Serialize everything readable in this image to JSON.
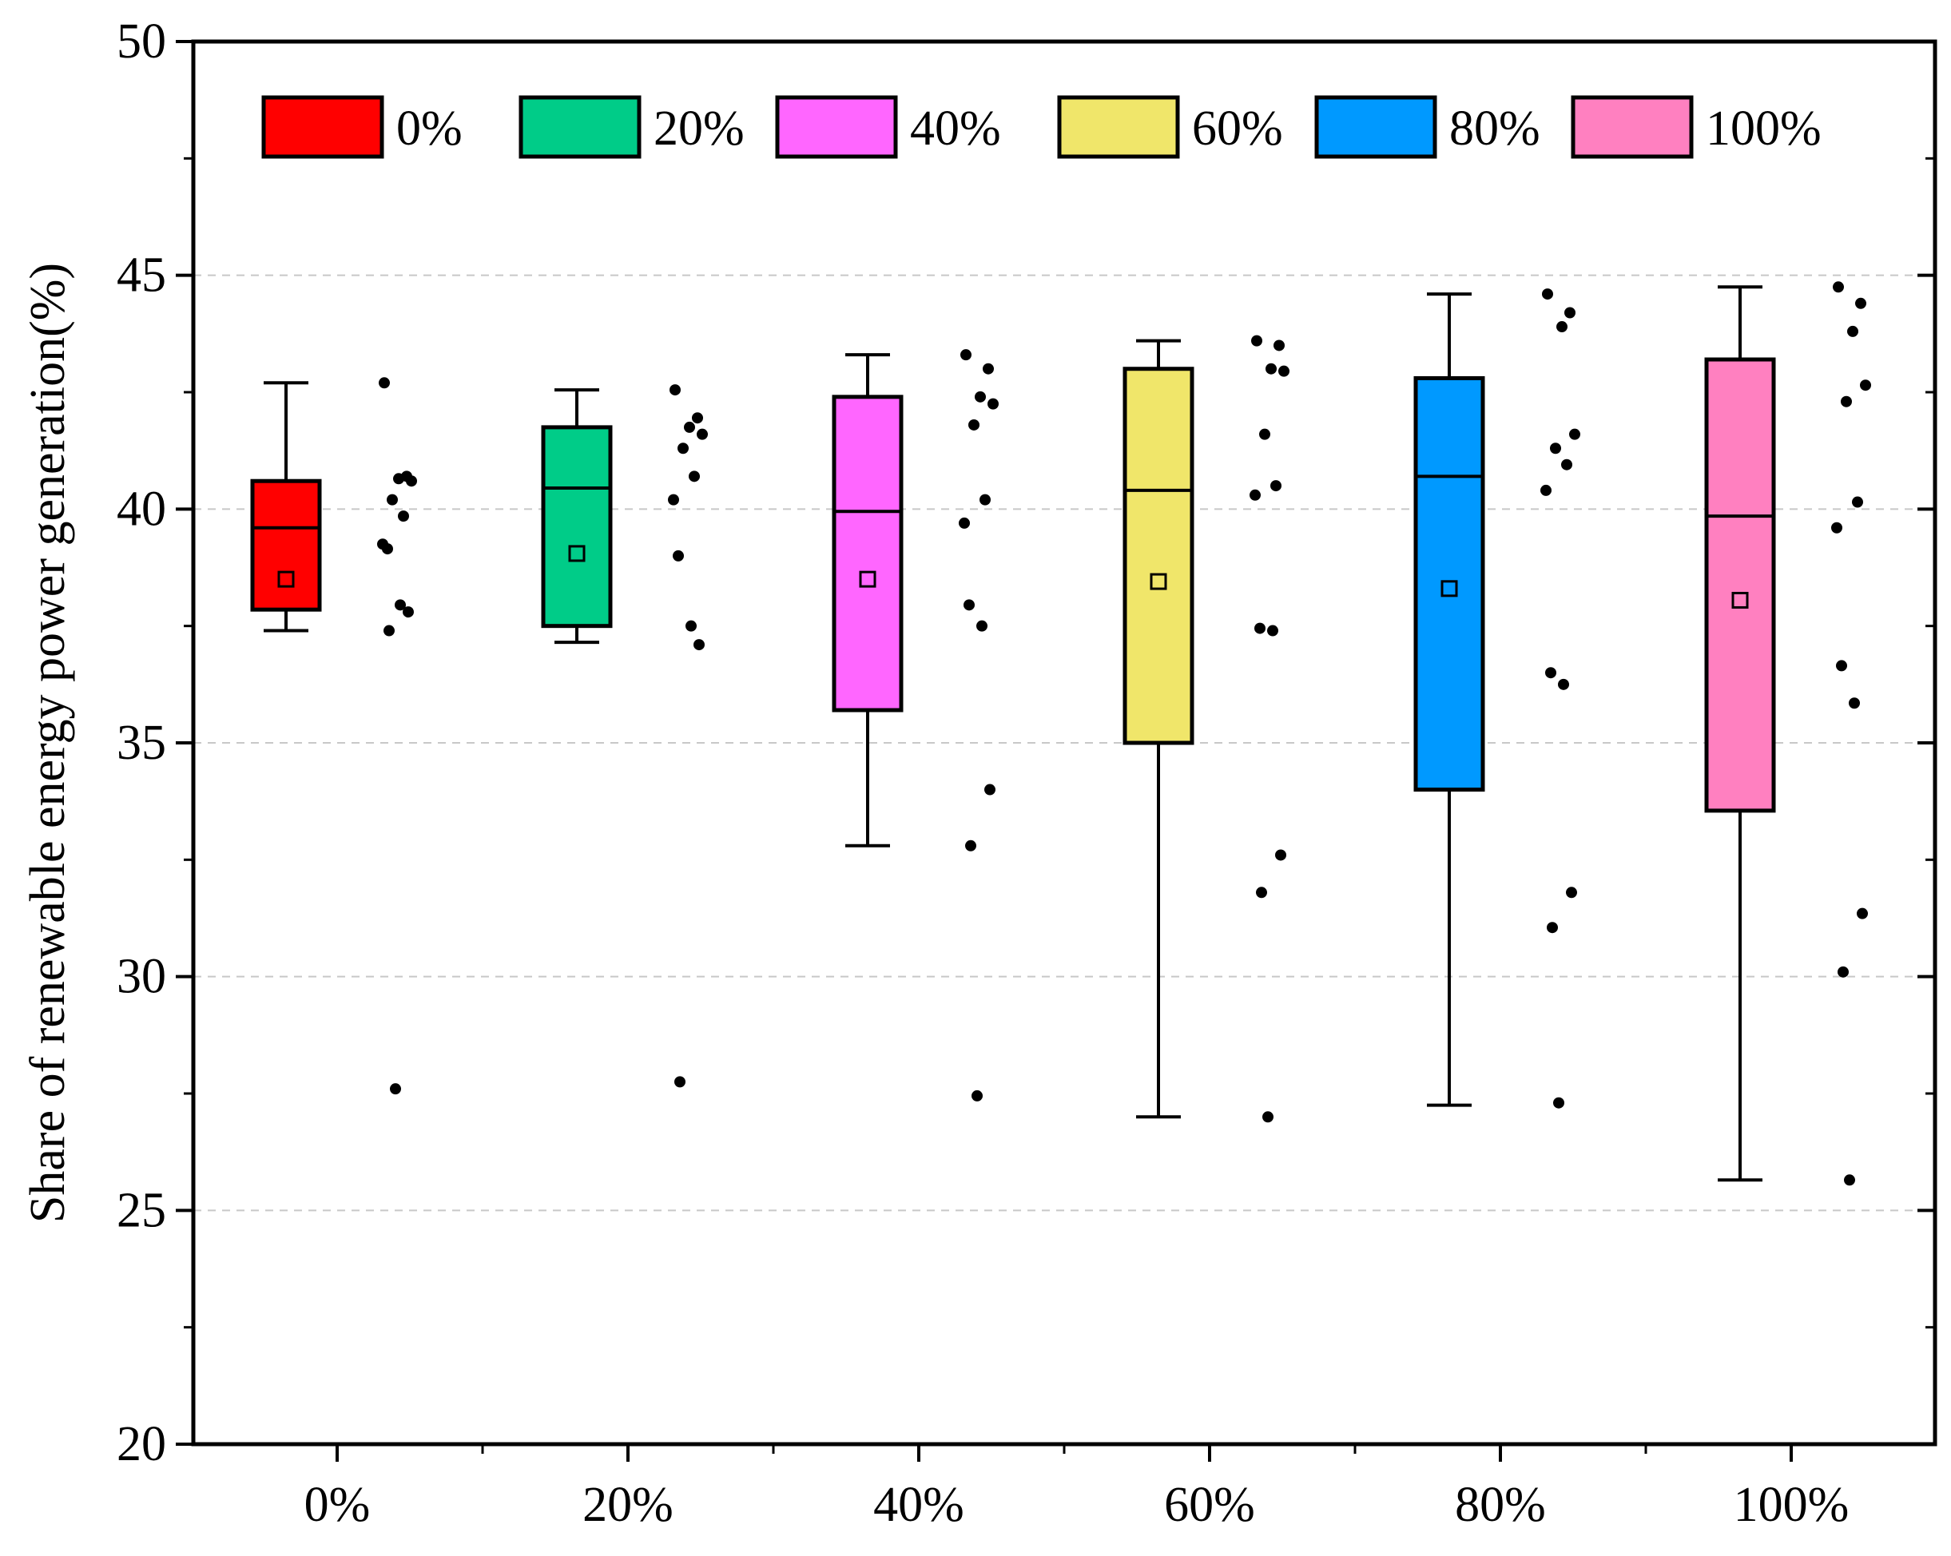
{
  "chart_data": {
    "type": "box",
    "title": "",
    "xlabel": "",
    "ylabel": "Share of renewable energy power generation(%)",
    "ylim": [
      20,
      50
    ],
    "yticks": [
      "20",
      "25",
      "30",
      "35",
      "40",
      "45",
      "50"
    ],
    "grid": "dashed horizontal at 25, 30, 35, 40, 45",
    "legend_position": "top",
    "categories": [
      "0%",
      "20%",
      "40%",
      "60%",
      "80%",
      "100%"
    ],
    "series": [
      {
        "name": "0%",
        "color": "#ff0000",
        "min": 37.4,
        "q1": 37.85,
        "median": 39.6,
        "q3": 40.6,
        "max": 42.7,
        "mean": 38.5,
        "points": [
          42.7,
          40.7,
          40.65,
          40.6,
          40.2,
          39.85,
          39.25,
          39.15,
          37.95,
          37.8,
          37.4,
          27.6
        ]
      },
      {
        "name": "20%",
        "color": "#00cc88",
        "min": 37.15,
        "q1": 37.5,
        "median": 40.45,
        "q3": 41.75,
        "max": 42.55,
        "mean": 39.05,
        "points": [
          42.55,
          41.95,
          41.75,
          41.6,
          41.3,
          40.7,
          40.2,
          39.0,
          37.5,
          37.1,
          27.75
        ]
      },
      {
        "name": "40%",
        "color": "#ff66ff",
        "min": 32.8,
        "q1": 35.7,
        "median": 39.95,
        "q3": 42.4,
        "max": 43.3,
        "mean": 38.5,
        "points": [
          43.3,
          43.0,
          42.4,
          42.25,
          41.8,
          40.2,
          39.7,
          37.95,
          37.5,
          34.0,
          32.8,
          27.45
        ]
      },
      {
        "name": "60%",
        "color": "#f0e66a",
        "min": 27.0,
        "q1": 35.0,
        "median": 40.4,
        "q3": 43.0,
        "max": 43.6,
        "mean": 38.45,
        "points": [
          43.6,
          43.5,
          43.0,
          42.95,
          41.6,
          40.5,
          40.3,
          37.45,
          37.4,
          32.6,
          31.8,
          27.0
        ]
      },
      {
        "name": "80%",
        "color": "#0099ff",
        "min": 27.25,
        "q1": 34.0,
        "median": 40.7,
        "q3": 42.8,
        "max": 44.6,
        "mean": 38.3,
        "points": [
          44.6,
          44.2,
          43.9,
          41.6,
          41.3,
          40.95,
          40.4,
          36.5,
          36.25,
          31.8,
          31.05,
          27.3
        ]
      },
      {
        "name": "100%",
        "color": "#ff80c0",
        "min": 25.65,
        "q1": 33.55,
        "median": 39.85,
        "q3": 43.2,
        "max": 44.75,
        "mean": 38.05,
        "points": [
          44.75,
          44.4,
          43.8,
          42.65,
          42.3,
          40.15,
          39.6,
          36.65,
          35.85,
          31.35,
          30.1,
          25.65
        ]
      }
    ]
  }
}
